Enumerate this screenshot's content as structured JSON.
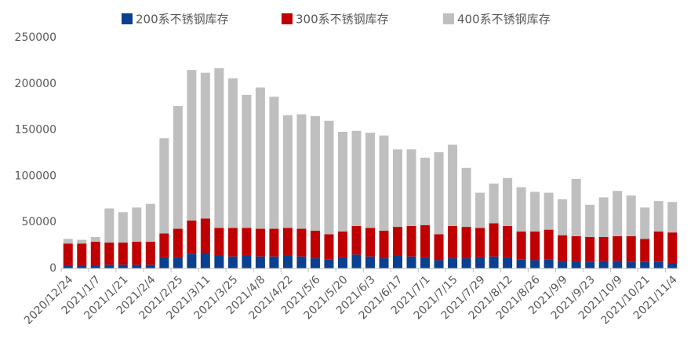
{
  "chart_data": {
    "type": "stacked_bar",
    "categories": [
      "2020/12/24",
      null,
      "2021/1/7",
      null,
      "2021/1/21",
      null,
      "2021/2/4",
      null,
      "2021/2/25",
      null,
      "2021/3/11",
      null,
      "2021/3/25",
      null,
      "2021/4/8",
      null,
      "2021/4/22",
      null,
      "2021/5/6",
      null,
      "2021/5/20",
      null,
      "2021/6/3",
      null,
      "2021/6/17",
      null,
      "2021/7/1",
      null,
      "2021/7/15",
      null,
      "2021/7/29",
      null,
      "2021/8/12",
      null,
      "2021/8/26",
      null,
      "2021/9/9",
      null,
      "2021/9/23",
      null,
      "2021/10/9",
      null,
      "2021/10/21",
      null,
      "2021/11/4"
    ],
    "series": [
      {
        "name": "200系不锈钢库存",
        "color": "#0b3f8f",
        "values": [
          3000,
          3000,
          3000,
          4000,
          4000,
          4000,
          4000,
          12000,
          12000,
          16000,
          17000,
          14000,
          13000,
          14000,
          13000,
          13000,
          14000,
          13000,
          11000,
          10000,
          12000,
          15000,
          13000,
          11000,
          14000,
          13000,
          12000,
          9000,
          11000,
          11000,
          12000,
          13000,
          12000,
          10000,
          9000,
          10000,
          8000,
          8000,
          7000,
          8000,
          8000,
          7000,
          7000,
          7000,
          6000
        ]
      },
      {
        "name": "300系不锈钢库存",
        "color": "#c00000",
        "values": [
          24000,
          24000,
          26000,
          24000,
          24000,
          25000,
          25000,
          26000,
          31000,
          36000,
          37000,
          30000,
          31000,
          30000,
          30000,
          30000,
          30000,
          30000,
          30000,
          27000,
          28000,
          31000,
          31000,
          30000,
          31000,
          33000,
          35000,
          28000,
          35000,
          34000,
          32000,
          36000,
          34000,
          30000,
          31000,
          32000,
          28000,
          27000,
          27000,
          26000,
          27000,
          28000,
          25000,
          33000,
          33000
        ]
      },
      {
        "name": "400系不锈钢库存",
        "color": "#bfbfbf",
        "values": [
          5000,
          4000,
          5000,
          37000,
          33000,
          37000,
          41000,
          103000,
          133000,
          163000,
          158000,
          173000,
          162000,
          144000,
          153000,
          143000,
          122000,
          124000,
          124000,
          123000,
          108000,
          103000,
          103000,
          103000,
          84000,
          83000,
          73000,
          89000,
          88000,
          64000,
          38000,
          43000,
          52000,
          48000,
          43000,
          40000,
          39000,
          62000,
          35000,
          43000,
          49000,
          44000,
          34000,
          33000,
          33000
        ]
      }
    ],
    "ylim": [
      0,
      250000
    ],
    "yticks": [
      0,
      50000,
      100000,
      150000,
      200000,
      250000
    ]
  }
}
